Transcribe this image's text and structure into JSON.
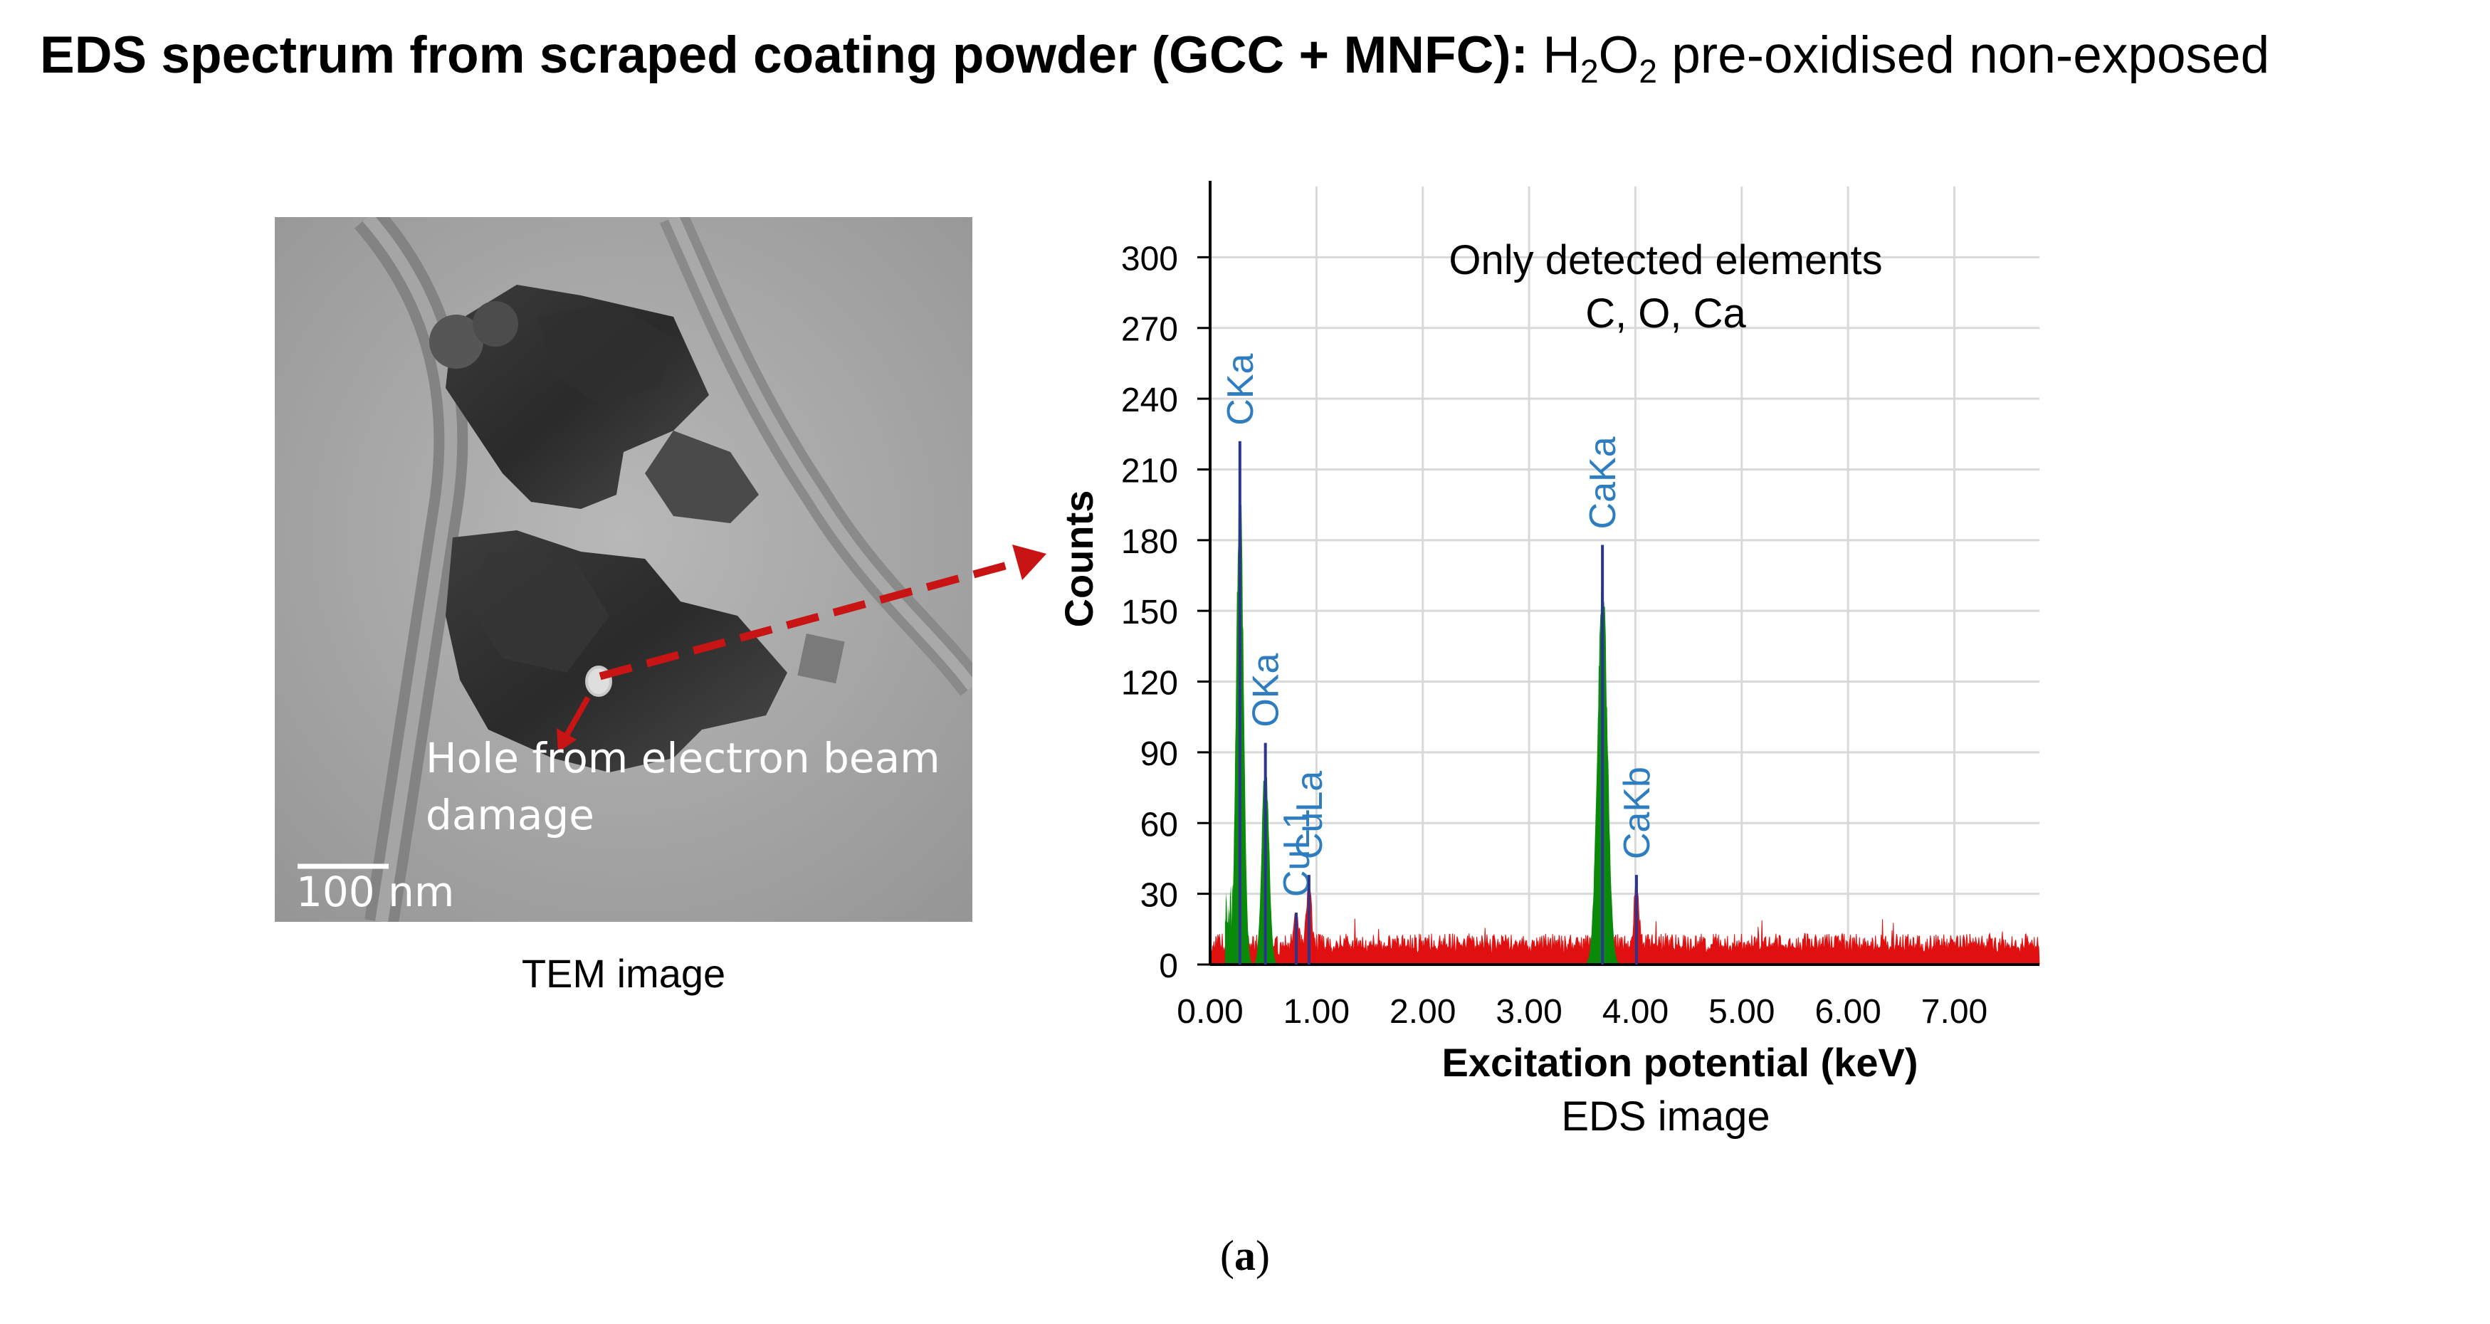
{
  "title": {
    "bold": "EDS spectrum from scraped coating powder (GCC + MNFC):",
    "rest_a": "H",
    "rest_sub1": "2",
    "rest_b": "O",
    "rest_sub2": "2",
    "rest_c": " pre-oxidised non-exposed"
  },
  "tem": {
    "annotation_line1": "Hole from electron beam",
    "annotation_line2": "damage",
    "scale_bar": "100 nm",
    "caption": "TEM image"
  },
  "chart_data": {
    "type": "bar",
    "title": "",
    "xlabel": "Excitation potential (keV)",
    "ylabel": "Counts",
    "caption": "EDS image",
    "xlim": [
      0.0,
      7.8
    ],
    "ylim": [
      0,
      330
    ],
    "x_ticks": [
      0,
      1,
      2,
      3,
      4,
      5,
      6,
      7
    ],
    "x_tick_labels": [
      "0.00",
      "1.00",
      "2.00",
      "3.00",
      "4.00",
      "5.00",
      "6.00",
      "7.00"
    ],
    "y_ticks": [
      0,
      30,
      60,
      90,
      120,
      150,
      180,
      210,
      240,
      270,
      300
    ],
    "y_tick_labels": [
      "0",
      "30",
      "60",
      "90",
      "120",
      "150",
      "180",
      "210",
      "240",
      "270",
      "300"
    ],
    "grid": true,
    "annotation_line1": "Only detected elements",
    "annotation_line2": "C, O, Ca",
    "background_level": 8,
    "peaks": [
      {
        "label": "CKa",
        "energy": 0.28,
        "counts": 222,
        "identified": true
      },
      {
        "label": "OKa",
        "energy": 0.52,
        "counts": 94,
        "identified": true
      },
      {
        "label": "CuL1",
        "energy": 0.81,
        "counts": 22,
        "identified": false
      },
      {
        "label": "CuLa",
        "energy": 0.93,
        "counts": 38,
        "identified": false
      },
      {
        "label": "CaKa",
        "energy": 3.69,
        "counts": 178,
        "identified": true
      },
      {
        "label": "CaKb",
        "energy": 4.01,
        "counts": 38,
        "identified": false
      }
    ]
  },
  "figure_label": {
    "open": "(",
    "letter": "a",
    "close": ")"
  },
  "colors": {
    "identified_peak": "#0a8a0a",
    "background_spectrum": "#e01010",
    "peak_label": "#2d7dc0",
    "marker": "#2a3590",
    "arrow": "#c81414",
    "grid": "#d9d9d9"
  }
}
